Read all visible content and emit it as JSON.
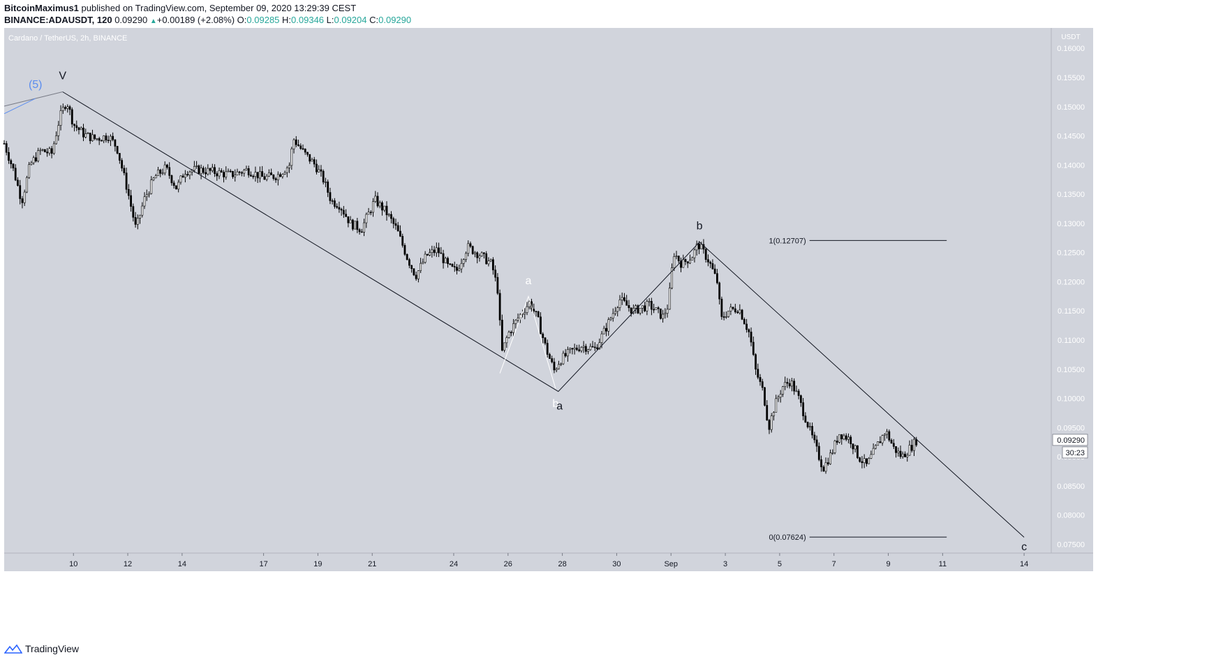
{
  "header": {
    "user": "BitcoinMaximus1",
    "published": "published on TradingView.com, September 09, 2020 13:29:39 CEST",
    "symbol": "BINANCE:ADAUSDT, 120",
    "last": "0.09290",
    "change": "+0.00189 (+2.08%)",
    "o_label": "O:",
    "o": "0.09285",
    "h_label": "H:",
    "h": "0.09346",
    "l_label": "L:",
    "l": "0.09204",
    "c_label": "C:",
    "c": "0.09290"
  },
  "footer": {
    "brand": "TradingView"
  },
  "chart_data": {
    "type": "candlestick",
    "title": "Cardano / TetherUS, 2h, BINANCE",
    "currency_label": "USDT",
    "ylim": [
      0.0735,
      0.1635
    ],
    "y_ticks": [
      "0.16000",
      "0.15500",
      "0.15000",
      "0.14500",
      "0.14000",
      "0.13500",
      "0.13000",
      "0.12500",
      "0.12000",
      "0.11500",
      "0.11000",
      "0.10500",
      "0.10000",
      "0.09500",
      "0.09000",
      "0.08500",
      "0.08000",
      "0.07500"
    ],
    "x_ticks": [
      {
        "label": "10",
        "day": 10
      },
      {
        "label": "12",
        "day": 12
      },
      {
        "label": "14",
        "day": 14
      },
      {
        "label": "17",
        "day": 17
      },
      {
        "label": "19",
        "day": 19
      },
      {
        "label": "21",
        "day": 21
      },
      {
        "label": "24",
        "day": 24
      },
      {
        "label": "26",
        "day": 26
      },
      {
        "label": "28",
        "day": 28
      },
      {
        "label": "30",
        "day": 30
      },
      {
        "label": "Sep",
        "day": 32
      },
      {
        "label": "3",
        "day": 34
      },
      {
        "label": "5",
        "day": 36
      },
      {
        "label": "7",
        "day": 38
      },
      {
        "label": "9",
        "day": 40
      },
      {
        "label": "11",
        "day": 42
      },
      {
        "label": "14",
        "day": 45
      }
    ],
    "x_range_days": [
      7.45,
      46.0
    ],
    "price_path": [
      [
        7.45,
        0.1437
      ],
      [
        7.8,
        0.139
      ],
      [
        8.1,
        0.1338
      ],
      [
        8.4,
        0.14
      ],
      [
        8.8,
        0.1425
      ],
      [
        9.2,
        0.142
      ],
      [
        9.5,
        0.1482
      ],
      [
        9.75,
        0.151
      ],
      [
        10.0,
        0.147
      ],
      [
        10.4,
        0.1452
      ],
      [
        10.8,
        0.1445
      ],
      [
        11.3,
        0.145
      ],
      [
        11.6,
        0.143
      ],
      [
        12.0,
        0.1355
      ],
      [
        12.3,
        0.129
      ],
      [
        12.6,
        0.134
      ],
      [
        13.0,
        0.138
      ],
      [
        13.4,
        0.1395
      ],
      [
        13.8,
        0.136
      ],
      [
        14.1,
        0.139
      ],
      [
        14.6,
        0.1392
      ],
      [
        15.2,
        0.1388
      ],
      [
        15.8,
        0.1383
      ],
      [
        16.4,
        0.1392
      ],
      [
        17.0,
        0.1378
      ],
      [
        17.5,
        0.1382
      ],
      [
        17.95,
        0.14
      ],
      [
        18.1,
        0.1445
      ],
      [
        18.5,
        0.142
      ],
      [
        18.9,
        0.14
      ],
      [
        19.2,
        0.1375
      ],
      [
        19.5,
        0.1338
      ],
      [
        19.8,
        0.1332
      ],
      [
        20.2,
        0.13
      ],
      [
        20.6,
        0.129
      ],
      [
        21.1,
        0.134
      ],
      [
        21.5,
        0.132
      ],
      [
        21.9,
        0.129
      ],
      [
        22.3,
        0.124
      ],
      [
        22.6,
        0.121
      ],
      [
        23.0,
        0.1245
      ],
      [
        23.4,
        0.1255
      ],
      [
        23.8,
        0.1225
      ],
      [
        24.1,
        0.1218
      ],
      [
        24.5,
        0.126
      ],
      [
        25.0,
        0.1245
      ],
      [
        25.4,
        0.123
      ],
      [
        25.65,
        0.118
      ],
      [
        25.75,
        0.1075
      ],
      [
        26.0,
        0.111
      ],
      [
        26.4,
        0.114
      ],
      [
        26.8,
        0.1165
      ],
      [
        27.1,
        0.1135
      ],
      [
        27.4,
        0.1085
      ],
      [
        27.7,
        0.1048
      ],
      [
        27.9,
        0.1065
      ],
      [
        28.3,
        0.108
      ],
      [
        28.7,
        0.109
      ],
      [
        29.2,
        0.1085
      ],
      [
        29.6,
        0.112
      ],
      [
        30.1,
        0.117
      ],
      [
        30.6,
        0.115
      ],
      [
        31.2,
        0.116
      ],
      [
        31.7,
        0.114
      ],
      [
        31.9,
        0.116
      ],
      [
        32.1,
        0.125
      ],
      [
        32.4,
        0.123
      ],
      [
        32.8,
        0.1245
      ],
      [
        33.0,
        0.1265
      ],
      [
        33.4,
        0.1235
      ],
      [
        33.7,
        0.12
      ],
      [
        33.85,
        0.1135
      ],
      [
        34.1,
        0.115
      ],
      [
        34.5,
        0.1155
      ],
      [
        34.9,
        0.111
      ],
      [
        35.1,
        0.105
      ],
      [
        35.4,
        0.101
      ],
      [
        35.6,
        0.095
      ],
      [
        35.8,
        0.0985
      ],
      [
        36.1,
        0.102
      ],
      [
        36.4,
        0.103
      ],
      [
        36.7,
        0.1
      ],
      [
        37.0,
        0.096
      ],
      [
        37.3,
        0.092
      ],
      [
        37.6,
        0.088
      ],
      [
        37.9,
        0.0905
      ],
      [
        38.2,
        0.094
      ],
      [
        38.6,
        0.093
      ],
      [
        38.9,
        0.09
      ],
      [
        39.2,
        0.0885
      ],
      [
        39.6,
        0.092
      ],
      [
        39.9,
        0.0945
      ],
      [
        40.2,
        0.0915
      ],
      [
        40.5,
        0.09
      ],
      [
        40.9,
        0.092
      ],
      [
        41.05,
        0.0929
      ]
    ],
    "wave_lines": [
      {
        "name": "main-wave-line",
        "color": "#131722",
        "points": [
          [
            9.6,
            0.15255
          ],
          [
            27.85,
            0.1012
          ],
          [
            33.05,
            0.1268
          ],
          [
            45.0,
            0.0762
          ]
        ]
      },
      {
        "name": "sub-wave-line",
        "color": "#ffffff",
        "points": [
          [
            25.7,
            0.1043
          ],
          [
            26.75,
            0.1175
          ],
          [
            27.75,
            0.1017
          ]
        ]
      },
      {
        "name": "prior-wave-line",
        "color": "#787b86",
        "points": [
          [
            7.45,
            0.1501
          ],
          [
            9.6,
            0.15255
          ]
        ]
      },
      {
        "name": "blue-wave-line",
        "color": "#5b8def",
        "points": [
          [
            7.45,
            0.1488
          ],
          [
            8.6,
            0.1514
          ]
        ]
      }
    ],
    "wave_labels": [
      {
        "text": "V",
        "day": 9.6,
        "price": 0.1547,
        "color": "#131722"
      },
      {
        "text": "(5)",
        "day": 8.6,
        "price": 0.1532,
        "color": "#5b8def"
      },
      {
        "text": "a",
        "day": 26.75,
        "price": 0.1196,
        "color": "#ffffff"
      },
      {
        "text": "b",
        "day": 27.75,
        "price": 0.0985,
        "color": "#ffffff"
      },
      {
        "text": "a",
        "day": 27.9,
        "price": 0.0981,
        "color": "#131722"
      },
      {
        "text": "b",
        "day": 33.05,
        "price": 0.129,
        "color": "#131722"
      },
      {
        "text": "c",
        "day": 45.0,
        "price": 0.074,
        "color": "#131722"
      }
    ],
    "fib_levels": [
      {
        "label": "1(0.12707)",
        "price": 0.12707
      },
      {
        "label": "0(0.07624)",
        "price": 0.07624
      }
    ],
    "fib_day_range": [
      37.1,
      42.15
    ],
    "last_price": {
      "value": "0.09290",
      "countdown": "30:23",
      "price": 0.0929
    }
  }
}
